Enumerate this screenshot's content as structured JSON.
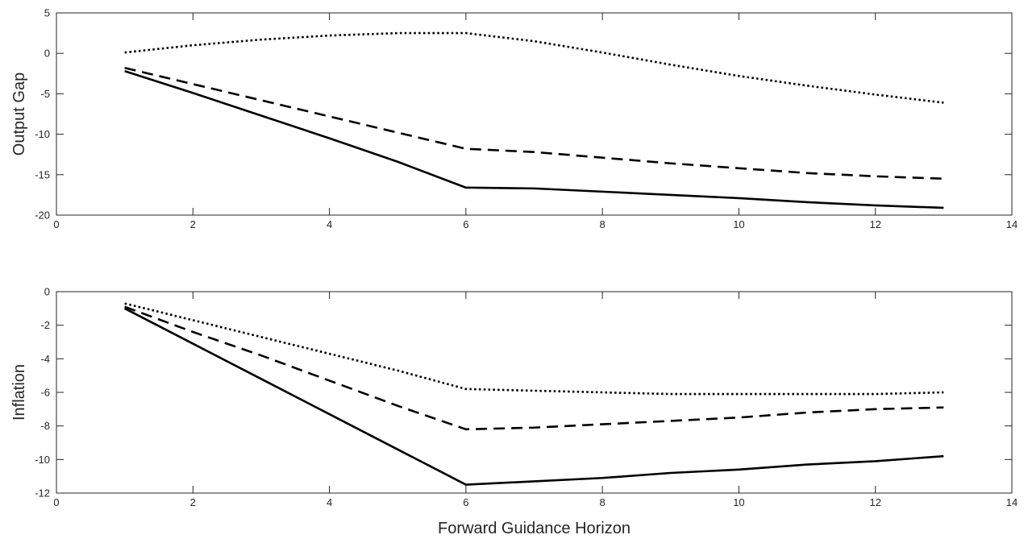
{
  "chart_data": [
    {
      "type": "line",
      "ylabel": "Output Gap",
      "xlabel": "",
      "xlim": [
        0,
        14
      ],
      "ylim": [
        -20,
        5
      ],
      "xticks": [
        0,
        2,
        4,
        6,
        8,
        10,
        12,
        14
      ],
      "yticks": [
        5,
        0,
        -5,
        -10,
        -15,
        -20
      ],
      "grid": false,
      "x": [
        1,
        2,
        3,
        4,
        5,
        6,
        7,
        8,
        9,
        10,
        11,
        12,
        13
      ],
      "series": [
        {
          "style": "solid",
          "values": [
            -2.2,
            -4.9,
            -7.7,
            -10.5,
            -13.4,
            -16.6,
            -16.7,
            -17.1,
            -17.5,
            -17.9,
            -18.4,
            -18.8,
            -19.1
          ]
        },
        {
          "style": "dashed",
          "values": [
            -1.8,
            -3.8,
            -5.8,
            -7.8,
            -9.8,
            -11.8,
            -12.2,
            -12.9,
            -13.6,
            -14.2,
            -14.8,
            -15.2,
            -15.5
          ]
        },
        {
          "style": "dotted",
          "values": [
            0.1,
            1.0,
            1.7,
            2.2,
            2.5,
            2.5,
            1.5,
            0.1,
            -1.4,
            -2.8,
            -4.0,
            -5.1,
            -6.1
          ]
        }
      ]
    },
    {
      "type": "line",
      "ylabel": "Inflation",
      "xlabel": "Forward Guidance Horizon",
      "xlim": [
        0,
        14
      ],
      "ylim": [
        -12,
        0
      ],
      "xticks": [
        0,
        2,
        4,
        6,
        8,
        10,
        12,
        14
      ],
      "yticks": [
        0,
        -2,
        -4,
        -6,
        -8,
        -10,
        -12
      ],
      "grid": false,
      "x": [
        1,
        2,
        3,
        4,
        5,
        6,
        7,
        8,
        9,
        10,
        11,
        12,
        13
      ],
      "series": [
        {
          "style": "solid",
          "values": [
            -1.0,
            -3.1,
            -5.2,
            -7.3,
            -9.4,
            -11.5,
            -11.3,
            -11.1,
            -10.8,
            -10.6,
            -10.3,
            -10.1,
            -9.8
          ]
        },
        {
          "style": "dashed",
          "values": [
            -0.9,
            -2.4,
            -3.8,
            -5.3,
            -6.8,
            -8.2,
            -8.1,
            -7.9,
            -7.7,
            -7.5,
            -7.2,
            -7.0,
            -6.9
          ]
        },
        {
          "style": "dotted",
          "values": [
            -0.7,
            -1.7,
            -2.7,
            -3.7,
            -4.7,
            -5.8,
            -5.9,
            -6.0,
            -6.1,
            -6.1,
            -6.1,
            -6.1,
            -6.0
          ]
        }
      ]
    }
  ]
}
